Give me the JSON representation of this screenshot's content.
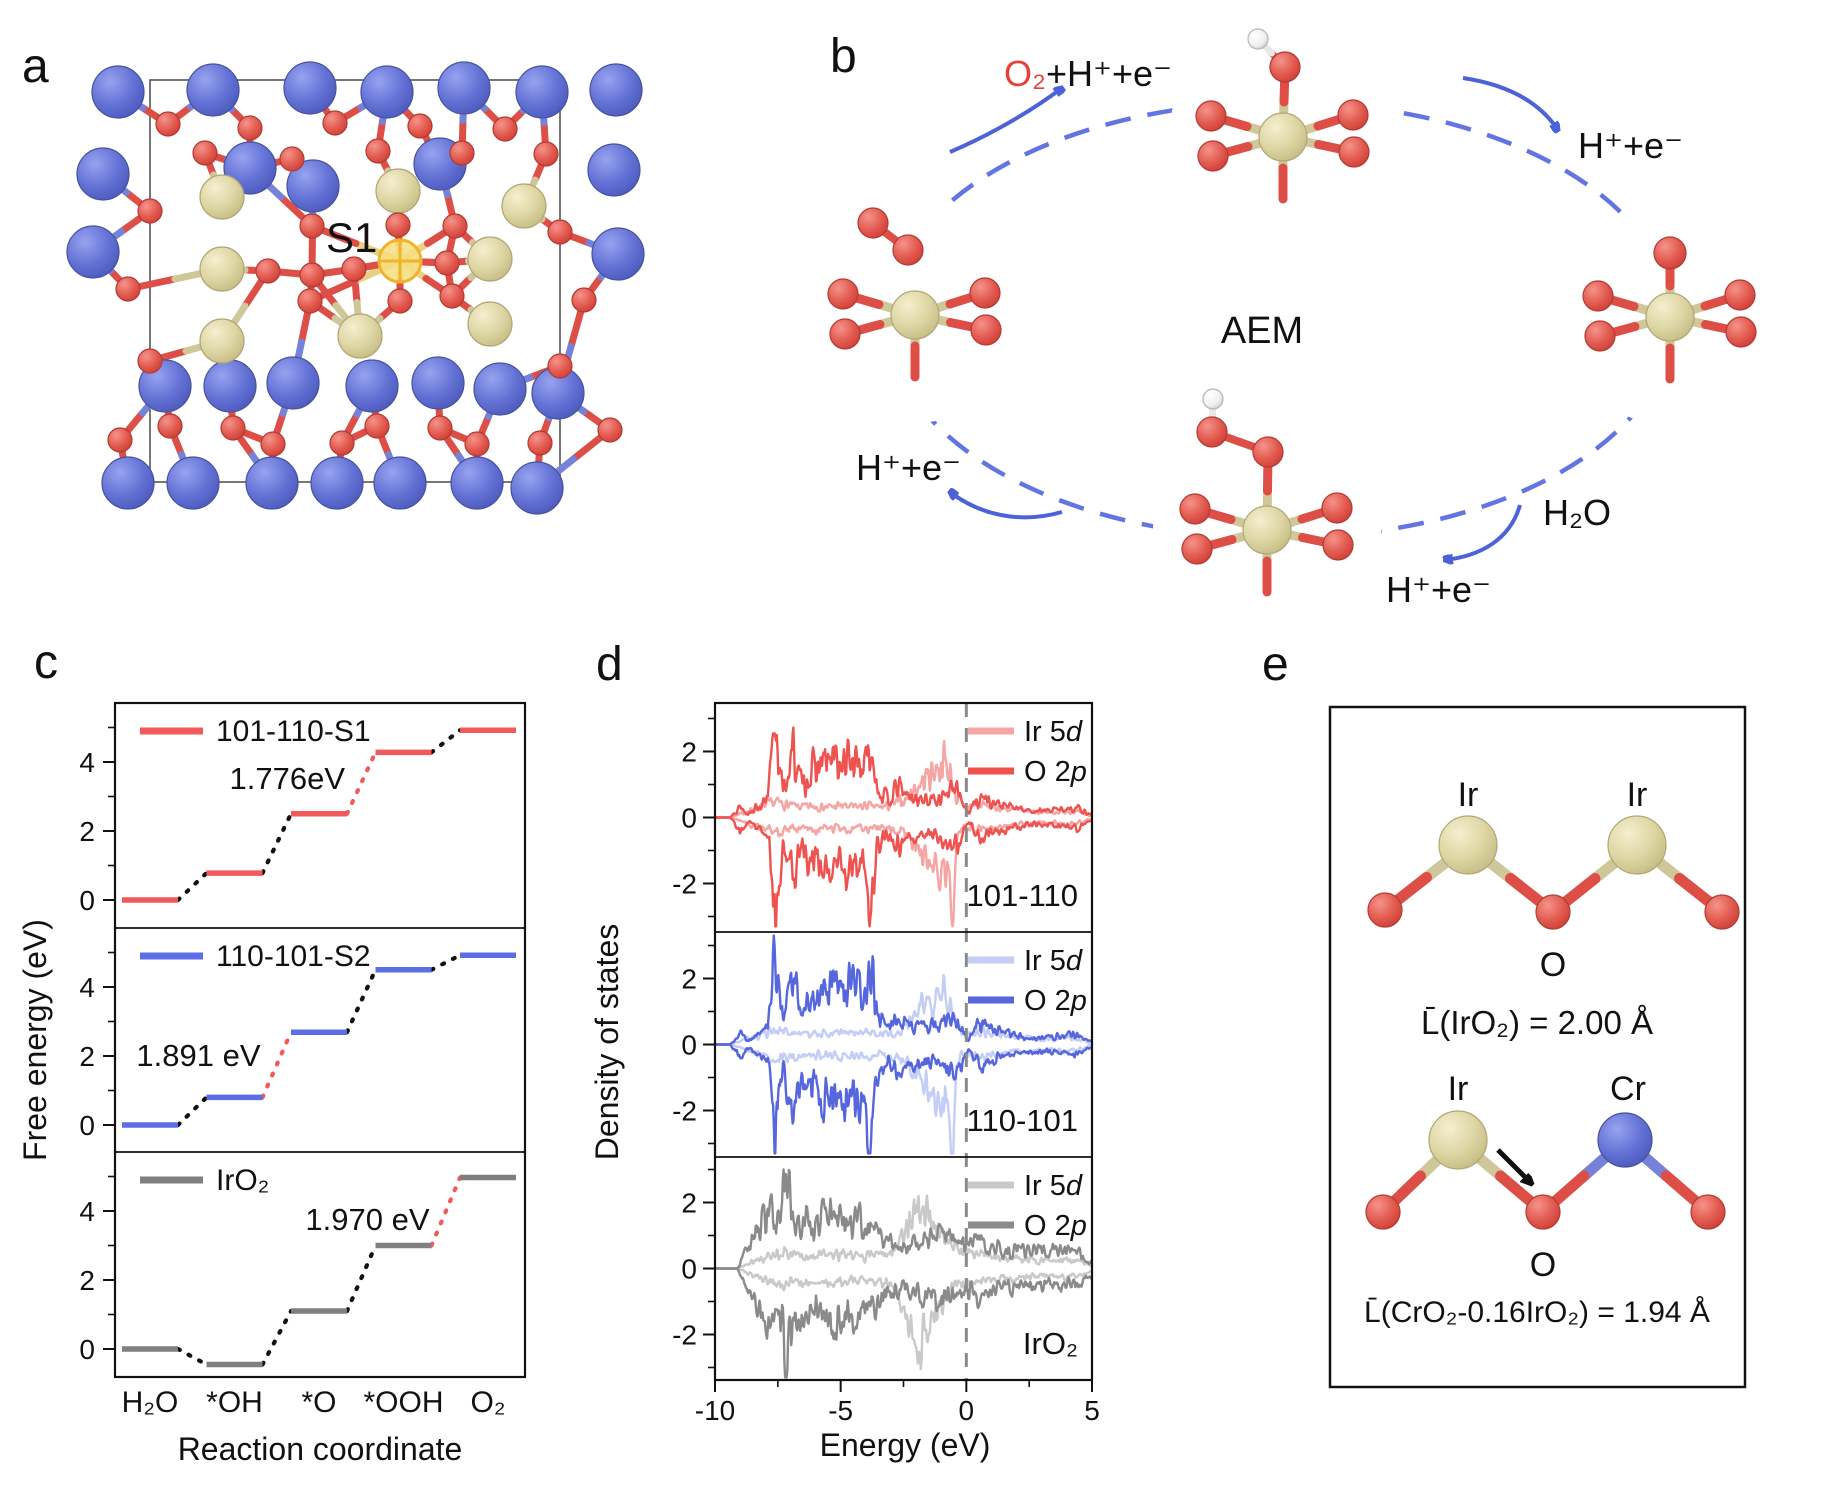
{
  "panel_labels": {
    "a": "a",
    "b": "b",
    "c": "c",
    "d": "d",
    "e": "e"
  },
  "colors": {
    "o_red": "#dd4f46",
    "ir_beige": "#d9d2a0",
    "m_blue": "#6472d6",
    "h_white": "#f4f4f4",
    "highlight_yellow": "#f0b429",
    "cycle_blue": "#5b6ee0",
    "barrier_red": "#f1595a",
    "fermi_gray": "#8a8a8a",
    "cell_border": "#555555"
  },
  "panel_a": {
    "site_label": "S1"
  },
  "panel_b": {
    "center_label": "AEM",
    "labels": {
      "release_red": "O₂",
      "release_rest": "+H⁺+e⁻",
      "right": "H⁺+e⁻",
      "water": "H₂O",
      "bottom_right": "H⁺+e⁻",
      "bottom_left": "H⁺+e⁻"
    }
  },
  "panel_e": {
    "top": {
      "left_atom": "Ir",
      "right_atom": "Ir",
      "bridge_atom": "O",
      "bond_length": "L̄(IrO₂) = 2.00 Å"
    },
    "bottom": {
      "left_atom": "Ir",
      "right_atom": "Cr",
      "bridge_atom": "O",
      "bond_length": "L̄(CrO₂-0.16IrO₂) = 1.94 Å"
    }
  },
  "chart_data": [
    {
      "id": "free_energy_steps",
      "type": "line",
      "xlabel": "Reaction coordinate",
      "ylabel": "Free energy (eV)",
      "categories": [
        "H₂O",
        "*OH",
        "*O",
        "*OOH",
        "O₂"
      ],
      "yticks": [
        0,
        2,
        4
      ],
      "ylim": [
        -1.1,
        5.4
      ],
      "grid": false,
      "legend_position": "top-left",
      "series": [
        {
          "name": "101-110-S1",
          "color": "#f1595a",
          "values": [
            0,
            0.78,
            2.5,
            4.28,
            4.92
          ],
          "barrier_connector": 3,
          "barrier_label": "1.776eV"
        },
        {
          "name": "110-101-S2",
          "color": "#5c6ee6",
          "values": [
            0,
            0.8,
            2.69,
            4.5,
            4.92
          ],
          "barrier_connector": 2,
          "barrier_label": "1.891 eV"
        },
        {
          "name": "IrO₂",
          "color": "#7f7f7f",
          "values": [
            0,
            -0.45,
            1.1,
            3.0,
            4.97
          ],
          "barrier_connector": 4,
          "barrier_label": "1.970 eV"
        }
      ],
      "barrier_color": "#f1595a",
      "connector_color": "#111111"
    },
    {
      "id": "projected_dos",
      "type": "line",
      "xlabel": "Energy (eV)",
      "ylabel": "Density of states",
      "xlim": [
        -10,
        5
      ],
      "xticks": [
        -10,
        -5,
        0,
        5
      ],
      "yticks": [
        -2,
        0,
        2
      ],
      "fermi_x": 0,
      "grid": false,
      "legend_position": "top-right",
      "panels": [
        {
          "label": "101-110",
          "series": [
            {
              "name_prefix": "Ir 5",
              "name_italic": "d",
              "color": "#f5a6a4",
              "envelope": "ir5d_slab",
              "down_extra": [
                [
                  -0.55,
                  2.6
                ]
              ],
              "seed": 7
            },
            {
              "name_prefix": "O 2",
              "name_italic": "p",
              "color": "#ef5350",
              "envelope": "o2p_slab",
              "down_extra": [
                [
                  -3.85,
                  1.9
                ]
              ],
              "seed": 13
            }
          ]
        },
        {
          "label": "110-101",
          "series": [
            {
              "name_prefix": "Ir 5",
              "name_italic": "d",
              "color": "#c3cdf5",
              "envelope": "ir5d_slab",
              "down_extra": [
                [
                  -0.55,
                  2.6
                ]
              ],
              "seed": 21
            },
            {
              "name_prefix": "O 2",
              "name_italic": "p",
              "color": "#5666dd",
              "envelope": "o2p_slab",
              "down_extra": [
                [
                  -3.85,
                  1.9
                ]
              ],
              "seed": 29
            }
          ]
        },
        {
          "label": "IrO₂",
          "series": [
            {
              "name_prefix": "Ir 5",
              "name_italic": "d",
              "color": "#c9c9c9",
              "envelope": "ir5d_iro2",
              "down_extra": [
                [
                  -1.9,
                  1.2
                ]
              ],
              "seed": 37
            },
            {
              "name_prefix": "O 2",
              "name_italic": "p",
              "color": "#8a8a8a",
              "envelope": "o2p_iro2",
              "down_extra": [],
              "seed": 43
            }
          ]
        }
      ],
      "envelopes": {
        "o2p_slab": [
          [
            -9.4,
            0
          ],
          [
            -9.0,
            0.35
          ],
          [
            -8.7,
            0.12
          ],
          [
            -7.9,
            0.5
          ],
          [
            -7.6,
            2.9
          ],
          [
            -7.3,
            0.7
          ],
          [
            -6.9,
            2.0
          ],
          [
            -6.6,
            1.0
          ],
          [
            -6.2,
            1.3
          ],
          [
            -5.8,
            1.55
          ],
          [
            -5.3,
            1.7
          ],
          [
            -4.9,
            1.5
          ],
          [
            -4.5,
            1.75
          ],
          [
            -4.1,
            1.5
          ],
          [
            -3.7,
            1.9
          ],
          [
            -3.5,
            0.8
          ],
          [
            -3.1,
            0.5
          ],
          [
            -2.7,
            0.9
          ],
          [
            -2.3,
            0.6
          ],
          [
            -1.9,
            0.55
          ],
          [
            -1.5,
            0.5
          ],
          [
            -1.1,
            0.6
          ],
          [
            -0.7,
            0.75
          ],
          [
            -0.3,
            0.8
          ],
          [
            -0.05,
            0.3
          ],
          [
            0.1,
            0.15
          ],
          [
            0.4,
            0.5
          ],
          [
            0.7,
            0.6
          ],
          [
            1.0,
            0.45
          ],
          [
            1.4,
            0.35
          ],
          [
            1.8,
            0.3
          ],
          [
            2.2,
            0.25
          ],
          [
            2.6,
            0.2
          ],
          [
            3.2,
            0.2
          ],
          [
            3.8,
            0.25
          ],
          [
            4.4,
            0.3
          ],
          [
            4.9,
            0.1
          ]
        ],
        "ir5d_slab": [
          [
            -9.4,
            0
          ],
          [
            -9.0,
            0.1
          ],
          [
            -7.6,
            0.45
          ],
          [
            -7.0,
            0.35
          ],
          [
            -6.5,
            0.3
          ],
          [
            -6.0,
            0.35
          ],
          [
            -5.5,
            0.3
          ],
          [
            -5.0,
            0.35
          ],
          [
            -4.5,
            0.3
          ],
          [
            -4.0,
            0.35
          ],
          [
            -3.5,
            0.3
          ],
          [
            -3.0,
            0.35
          ],
          [
            -2.5,
            0.5
          ],
          [
            -2.1,
            0.8
          ],
          [
            -1.7,
            1.1
          ],
          [
            -1.3,
            1.4
          ],
          [
            -0.9,
            1.7
          ],
          [
            -0.6,
            1.2
          ],
          [
            -0.4,
            0.6
          ],
          [
            -0.1,
            0.3
          ],
          [
            0.2,
            0.35
          ],
          [
            0.5,
            0.4
          ],
          [
            0.8,
            0.35
          ],
          [
            1.2,
            0.3
          ],
          [
            1.6,
            0.25
          ],
          [
            2.0,
            0.2
          ],
          [
            2.5,
            0.2
          ],
          [
            3.0,
            0.15
          ],
          [
            3.5,
            0.15
          ],
          [
            4.0,
            0.2
          ],
          [
            4.5,
            0.15
          ],
          [
            4.9,
            0.05
          ]
        ],
        "o2p_iro2": [
          [
            -9.1,
            0
          ],
          [
            -8.7,
            0.6
          ],
          [
            -8.3,
            1.1
          ],
          [
            -7.9,
            1.5
          ],
          [
            -7.5,
            1.4
          ],
          [
            -7.2,
            2.8
          ],
          [
            -6.9,
            1.6
          ],
          [
            -6.5,
            1.4
          ],
          [
            -6.1,
            1.2
          ],
          [
            -5.7,
            1.4
          ],
          [
            -5.2,
            1.5
          ],
          [
            -4.8,
            1.3
          ],
          [
            -4.4,
            1.5
          ],
          [
            -4.0,
            1.4
          ],
          [
            -3.6,
            1.1
          ],
          [
            -3.2,
            0.8
          ],
          [
            -2.8,
            0.7
          ],
          [
            -2.4,
            0.6
          ],
          [
            -2.0,
            0.7
          ],
          [
            -1.6,
            0.8
          ],
          [
            -1.2,
            0.9
          ],
          [
            -0.8,
            1.0
          ],
          [
            -0.4,
            0.8
          ],
          [
            0.0,
            0.7
          ],
          [
            0.4,
            0.8
          ],
          [
            0.8,
            0.7
          ],
          [
            1.2,
            0.6
          ],
          [
            1.6,
            0.5
          ],
          [
            2.0,
            0.6
          ],
          [
            2.5,
            0.5
          ],
          [
            3.0,
            0.5
          ],
          [
            3.5,
            0.55
          ],
          [
            4.0,
            0.5
          ],
          [
            4.5,
            0.45
          ],
          [
            4.9,
            0.2
          ]
        ],
        "ir5d_iro2": [
          [
            -9.1,
            0
          ],
          [
            -8.5,
            0.2
          ],
          [
            -8.0,
            0.3
          ],
          [
            -7.5,
            0.5
          ],
          [
            -7.0,
            0.45
          ],
          [
            -6.0,
            0.4
          ],
          [
            -5.0,
            0.4
          ],
          [
            -4.0,
            0.35
          ],
          [
            -3.0,
            0.5
          ],
          [
            -2.6,
            0.9
          ],
          [
            -2.2,
            1.7
          ],
          [
            -1.8,
            1.9
          ],
          [
            -1.4,
            1.5
          ],
          [
            -1.0,
            1.0
          ],
          [
            -0.6,
            0.7
          ],
          [
            -0.2,
            0.5
          ],
          [
            0.2,
            0.4
          ],
          [
            0.6,
            0.4
          ],
          [
            1.0,
            0.35
          ],
          [
            1.5,
            0.3
          ],
          [
            2.0,
            0.3
          ],
          [
            2.5,
            0.25
          ],
          [
            3.0,
            0.25
          ],
          [
            3.5,
            0.2
          ],
          [
            4.0,
            0.25
          ],
          [
            4.5,
            0.2
          ],
          [
            4.9,
            0.1
          ]
        ]
      }
    }
  ]
}
